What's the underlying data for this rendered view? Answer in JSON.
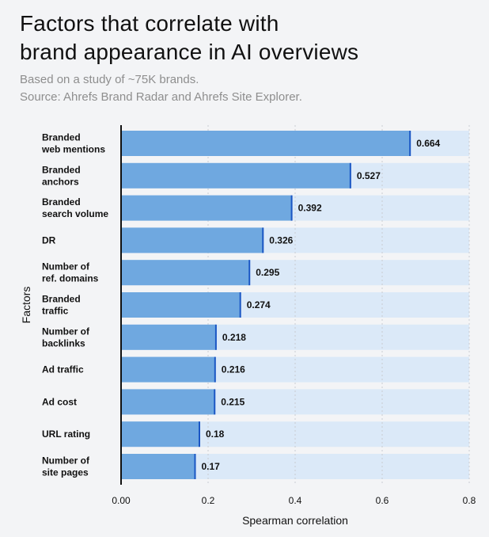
{
  "title_line1": "Factors that correlate with",
  "title_line2": "brand appearance in AI overviews",
  "subtitle_line1": "Based on a study of ~75K brands.",
  "subtitle_line2": "Source: Ahrefs Brand Radar and Ahrefs Site Explorer.",
  "colors": {
    "bar": "#6fa8e0",
    "bar_end": "#1a56c4",
    "track": "#dbe9f8",
    "grid": "#c9ccd1",
    "axis": "#111111"
  },
  "chart_data": {
    "type": "bar",
    "orientation": "horizontal",
    "categories": [
      [
        "Branded",
        "web mentions"
      ],
      [
        "Branded",
        "anchors"
      ],
      [
        "Branded",
        "search volume"
      ],
      [
        "DR"
      ],
      [
        "Number of",
        "ref. domains"
      ],
      [
        "Branded",
        "traffic"
      ],
      [
        "Number of",
        "backlinks"
      ],
      [
        "Ad traffic"
      ],
      [
        "Ad cost"
      ],
      [
        "URL rating"
      ],
      [
        "Number of",
        "site pages"
      ]
    ],
    "values": [
      0.664,
      0.527,
      0.392,
      0.326,
      0.295,
      0.274,
      0.218,
      0.216,
      0.215,
      0.18,
      0.17
    ],
    "value_labels": [
      "0.664",
      "0.527",
      "0.392",
      "0.326",
      "0.295",
      "0.274",
      "0.218",
      "0.216",
      "0.215",
      "0.18",
      "0.17"
    ],
    "xlim": [
      0,
      0.8
    ],
    "xticks": [
      0,
      0.2,
      0.4,
      0.6,
      0.8
    ],
    "xtick_labels": [
      "0.00",
      "0.2",
      "0.4",
      "0.6",
      "0.8"
    ],
    "xlabel": "Spearman correlation",
    "ylabel": "Factors",
    "grid": true
  }
}
